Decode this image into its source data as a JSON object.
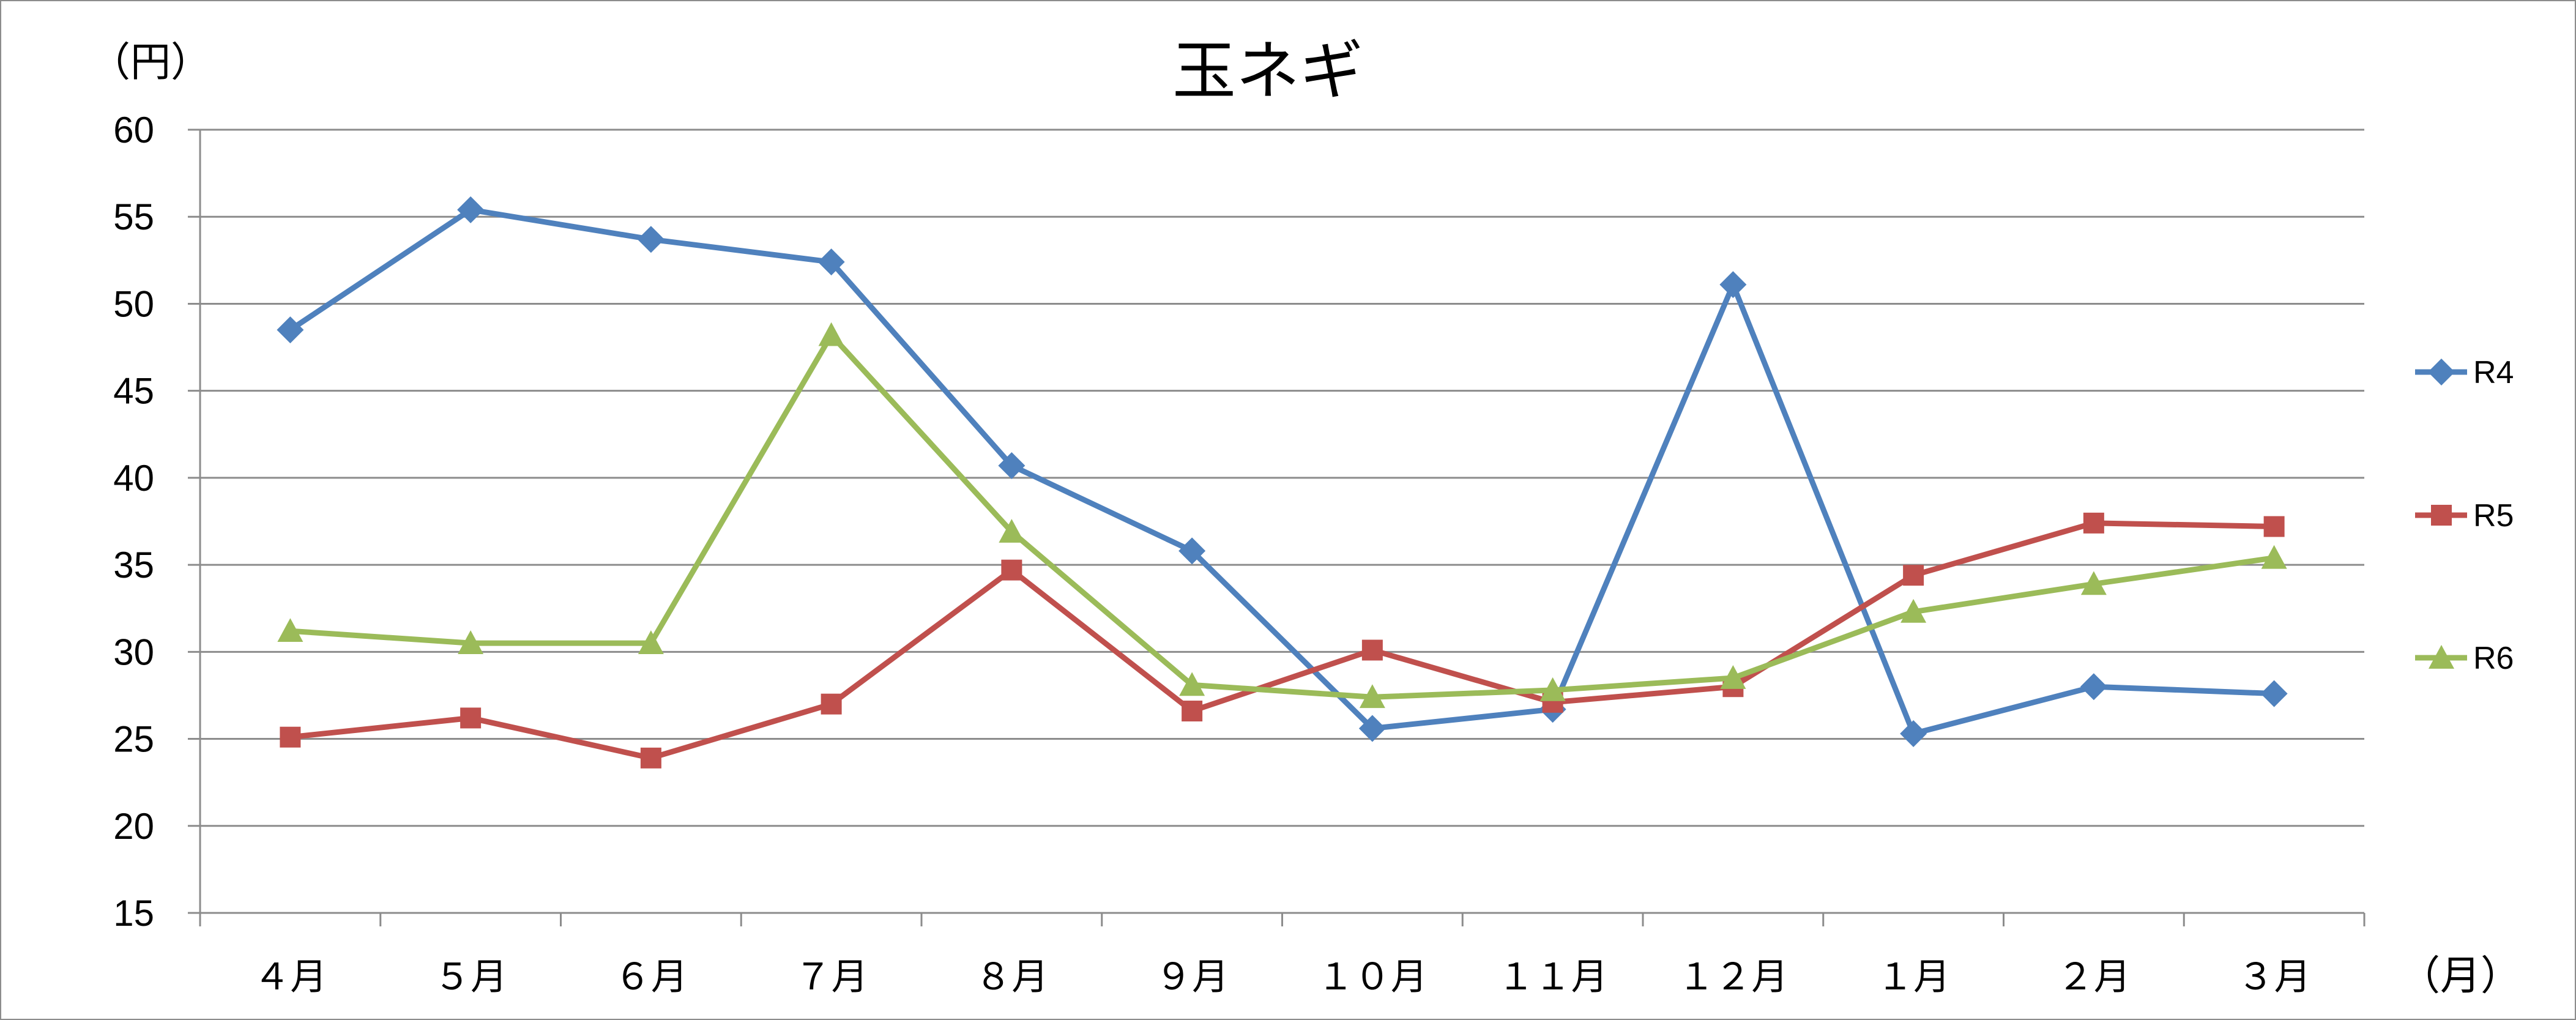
{
  "chart_data": {
    "type": "line",
    "title": "玉ネギ",
    "y_unit": "（円）",
    "x_unit": "（月）",
    "categories": [
      "４月",
      "５月",
      "６月",
      "７月",
      "８月",
      "９月",
      "１０月",
      "１１月",
      "１２月",
      "１月",
      "２月",
      "３月"
    ],
    "ylim": [
      15,
      60
    ],
    "yticks": [
      15,
      20,
      25,
      30,
      35,
      40,
      45,
      50,
      55,
      60
    ],
    "grid": true,
    "legend_position": "right",
    "series": [
      {
        "name": "R4",
        "color": "#4f81bd",
        "marker": "diamond",
        "values": [
          48.5,
          55.4,
          53.7,
          52.4,
          40.7,
          35.8,
          25.6,
          26.7,
          51.1,
          25.3,
          28.0,
          27.6
        ]
      },
      {
        "name": "R5",
        "color": "#c0504d",
        "marker": "square",
        "values": [
          25.1,
          26.2,
          23.9,
          27.0,
          34.7,
          26.6,
          30.1,
          27.1,
          28.0,
          34.4,
          37.4,
          37.2
        ]
      },
      {
        "name": "R6",
        "color": "#9bbb59",
        "marker": "triangle",
        "values": [
          31.2,
          30.5,
          30.5,
          48.2,
          36.9,
          28.1,
          27.4,
          27.8,
          28.5,
          32.3,
          33.9,
          35.4
        ]
      }
    ]
  }
}
